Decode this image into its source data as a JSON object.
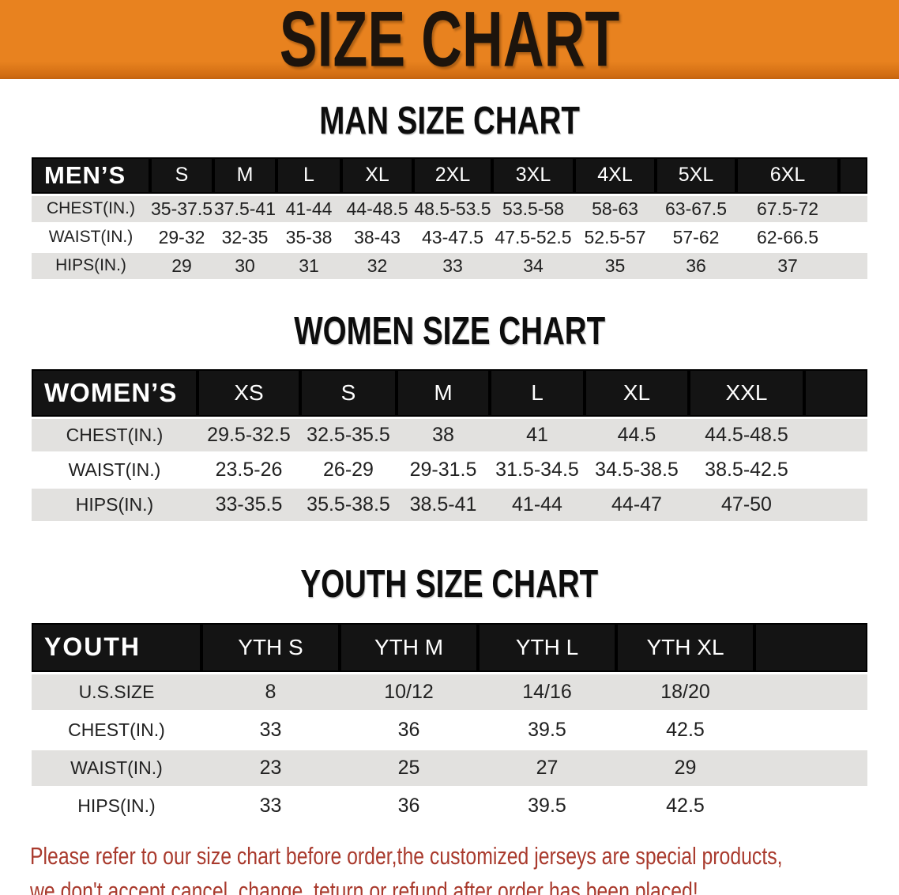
{
  "banner": {
    "title": "SIZE CHART"
  },
  "colors": {
    "banner_bg": "#e8821f",
    "header_bg": "#141414",
    "row_alt_bg": "#e2e1df",
    "footer_text": "#a93a2d"
  },
  "sections": [
    {
      "id": "men",
      "heading": "MAN SIZE CHART",
      "group_label": "MEN’S",
      "columns": [
        "S",
        "M",
        "L",
        "XL",
        "2XL",
        "3XL",
        "4XL",
        "5XL",
        "6XL"
      ],
      "rows": [
        {
          "label": "CHEST(IN.)",
          "values": [
            "35-37.5",
            "37.5-41",
            "41-44",
            "44-48.5",
            "48.5-53.5",
            "53.5-58",
            "58-63",
            "63-67.5",
            "67.5-72"
          ]
        },
        {
          "label": "WAIST(IN.)",
          "values": [
            "29-32",
            "32-35",
            "35-38",
            "38-43",
            "43-47.5",
            "47.5-52.5",
            "52.5-57",
            "57-62",
            "62-66.5"
          ]
        },
        {
          "label": "HIPS(IN.)",
          "values": [
            "29",
            "30",
            "31",
            "32",
            "33",
            "34",
            "35",
            "36",
            "37"
          ]
        }
      ]
    },
    {
      "id": "women",
      "heading": "WOMEN SIZE CHART",
      "group_label": "WOMEN’S",
      "columns": [
        "XS",
        "S",
        "M",
        "L",
        "XL",
        "XXL"
      ],
      "rows": [
        {
          "label": "CHEST(IN.)",
          "values": [
            "29.5-32.5",
            "32.5-35.5",
            "38",
            "41",
            "44.5",
            "44.5-48.5"
          ]
        },
        {
          "label": "WAIST(IN.)",
          "values": [
            "23.5-26",
            "26-29",
            "29-31.5",
            "31.5-34.5",
            "34.5-38.5",
            "38.5-42.5"
          ]
        },
        {
          "label": "HIPS(IN.)",
          "values": [
            "33-35.5",
            "35.5-38.5",
            "38.5-41",
            "41-44",
            "44-47",
            "47-50"
          ]
        }
      ]
    },
    {
      "id": "youth",
      "heading": "YOUTH SIZE CHART",
      "group_label": "YOUTH",
      "columns": [
        "YTH S",
        "YTH M",
        "YTH L",
        "YTH XL"
      ],
      "rows": [
        {
          "label": "U.S.SIZE",
          "values": [
            "8",
            "10/12",
            "14/16",
            "18/20"
          ]
        },
        {
          "label": "CHEST(IN.)",
          "values": [
            "33",
            "36",
            "39.5",
            "42.5"
          ]
        },
        {
          "label": "WAIST(IN.)",
          "values": [
            "23",
            "25",
            "27",
            "29"
          ]
        },
        {
          "label": "HIPS(IN.)",
          "values": [
            "33",
            "36",
            "39.5",
            "42.5"
          ]
        }
      ]
    }
  ],
  "footer": {
    "line1": "Please refer to our size chart before order,the customized jerseys are special products,",
    "line2": "we don't accept cancel, change, teturn or refund after order has been placed!"
  }
}
